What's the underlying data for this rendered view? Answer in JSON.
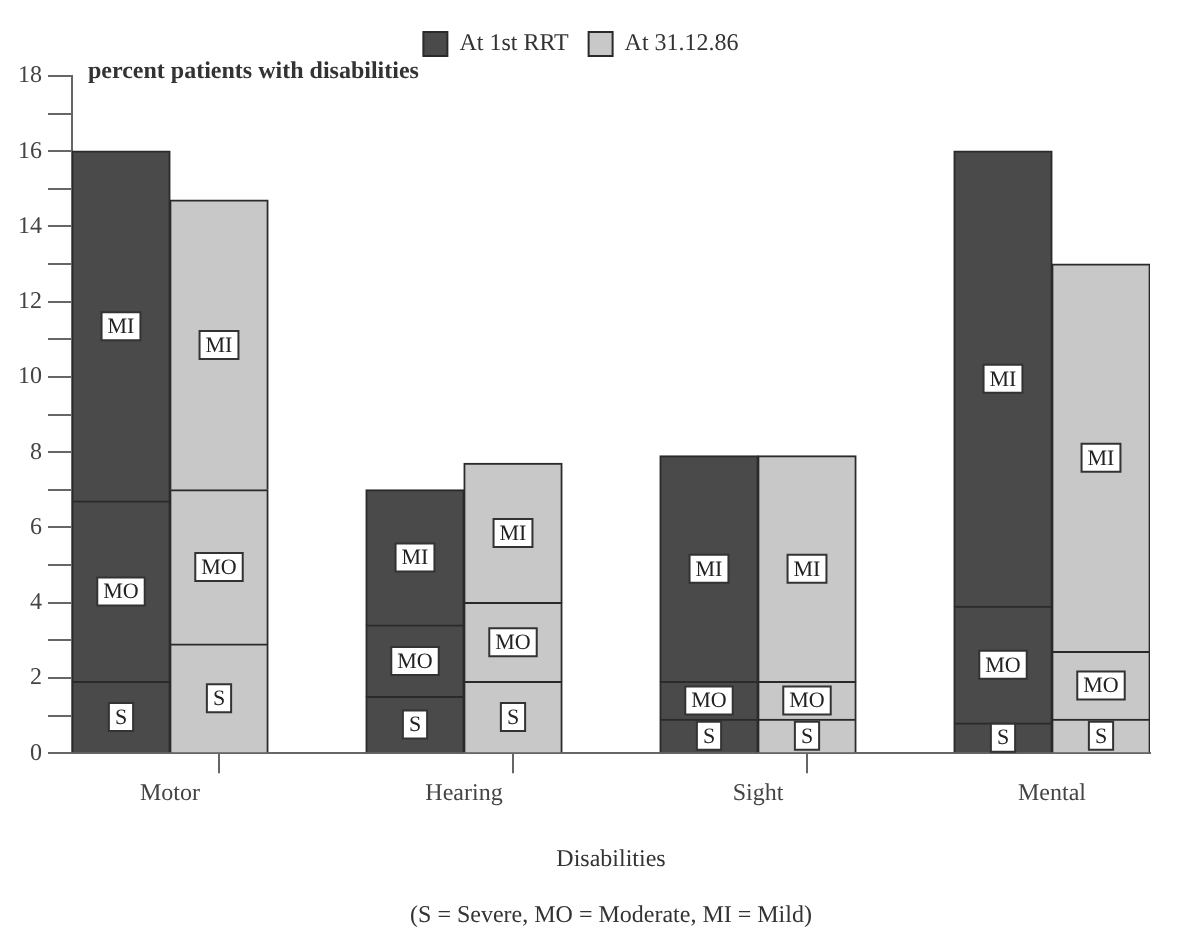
{
  "chart_data": {
    "type": "bar",
    "stacked": true,
    "ylabel": "percent patients with disabilities",
    "xlabel": "Disabilities",
    "annotations": [
      "(S = Severe, MO = Moderate, MI = Mild)"
    ],
    "categories": [
      "Motor",
      null,
      null,
      "Hearing",
      null,
      null,
      "Sight",
      null,
      null,
      "Mental",
      null
    ],
    "series": [
      {
        "name": "At 1st RRT",
        "color": "#4a4a4a",
        "values": [
          1.9,
          null,
          null,
          1.5,
          null,
          null,
          0.9,
          null,
          null,
          0.8,
          null
        ],
        "value_labels": [
          "S",
          null,
          null,
          "S",
          null,
          null,
          "S",
          null,
          null,
          "S",
          null
        ]
      },
      {
        "color": "#4a4a4a",
        "values": [
          4.8,
          null,
          null,
          1.9,
          null,
          null,
          1.0,
          null,
          null,
          3.1,
          null
        ],
        "value_labels": [
          "MO",
          null,
          null,
          "MO",
          null,
          null,
          "MO",
          null,
          null,
          "MO",
          null
        ]
      },
      {
        "color": "#4a4a4a",
        "values": [
          9.3,
          null,
          null,
          3.6,
          null,
          null,
          6.0,
          null,
          null,
          12.1,
          null
        ],
        "value_labels": [
          "MI",
          null,
          null,
          "MI",
          null,
          null,
          "MI",
          null,
          null,
          "MI",
          null
        ]
      },
      {
        "name": "At 31.12.86",
        "color": "#c8c8c8",
        "values": [
          null,
          2.9,
          null,
          null,
          1.9,
          null,
          null,
          0.9,
          null,
          null,
          0.9
        ],
        "value_labels": [
          null,
          "S",
          null,
          null,
          "S",
          null,
          null,
          "S",
          null,
          null,
          "S"
        ]
      },
      {
        "color": "#c8c8c8",
        "values": [
          null,
          4.1,
          null,
          null,
          2.1,
          null,
          null,
          1.0,
          null,
          null,
          1.8
        ],
        "value_labels": [
          null,
          "MO",
          null,
          null,
          "MO",
          null,
          null,
          "MO",
          null,
          null,
          "MO"
        ]
      },
      {
        "color": "#c8c8c8",
        "values": [
          null,
          7.7,
          null,
          null,
          3.7,
          null,
          null,
          6.0,
          null,
          null,
          10.3
        ],
        "value_labels": [
          null,
          "MI",
          null,
          null,
          "MI",
          null,
          null,
          "MI",
          null,
          null,
          "MI"
        ]
      }
    ],
    "ylim": [
      0,
      18
    ],
    "yticks": [
      0,
      {
        "value": 1,
        "label": null
      },
      2,
      {
        "value": 3,
        "label": null
      },
      4,
      {
        "value": 5,
        "label": null
      },
      6,
      {
        "value": 7,
        "label": null
      },
      8,
      {
        "value": 9,
        "label": null
      },
      10,
      {
        "value": 11,
        "label": null
      },
      12,
      {
        "value": 13,
        "label": null
      },
      14,
      {
        "value": 15,
        "label": null
      },
      16,
      {
        "value": 17,
        "label": null
      },
      18
    ],
    "grid": false,
    "legend": "top"
  }
}
